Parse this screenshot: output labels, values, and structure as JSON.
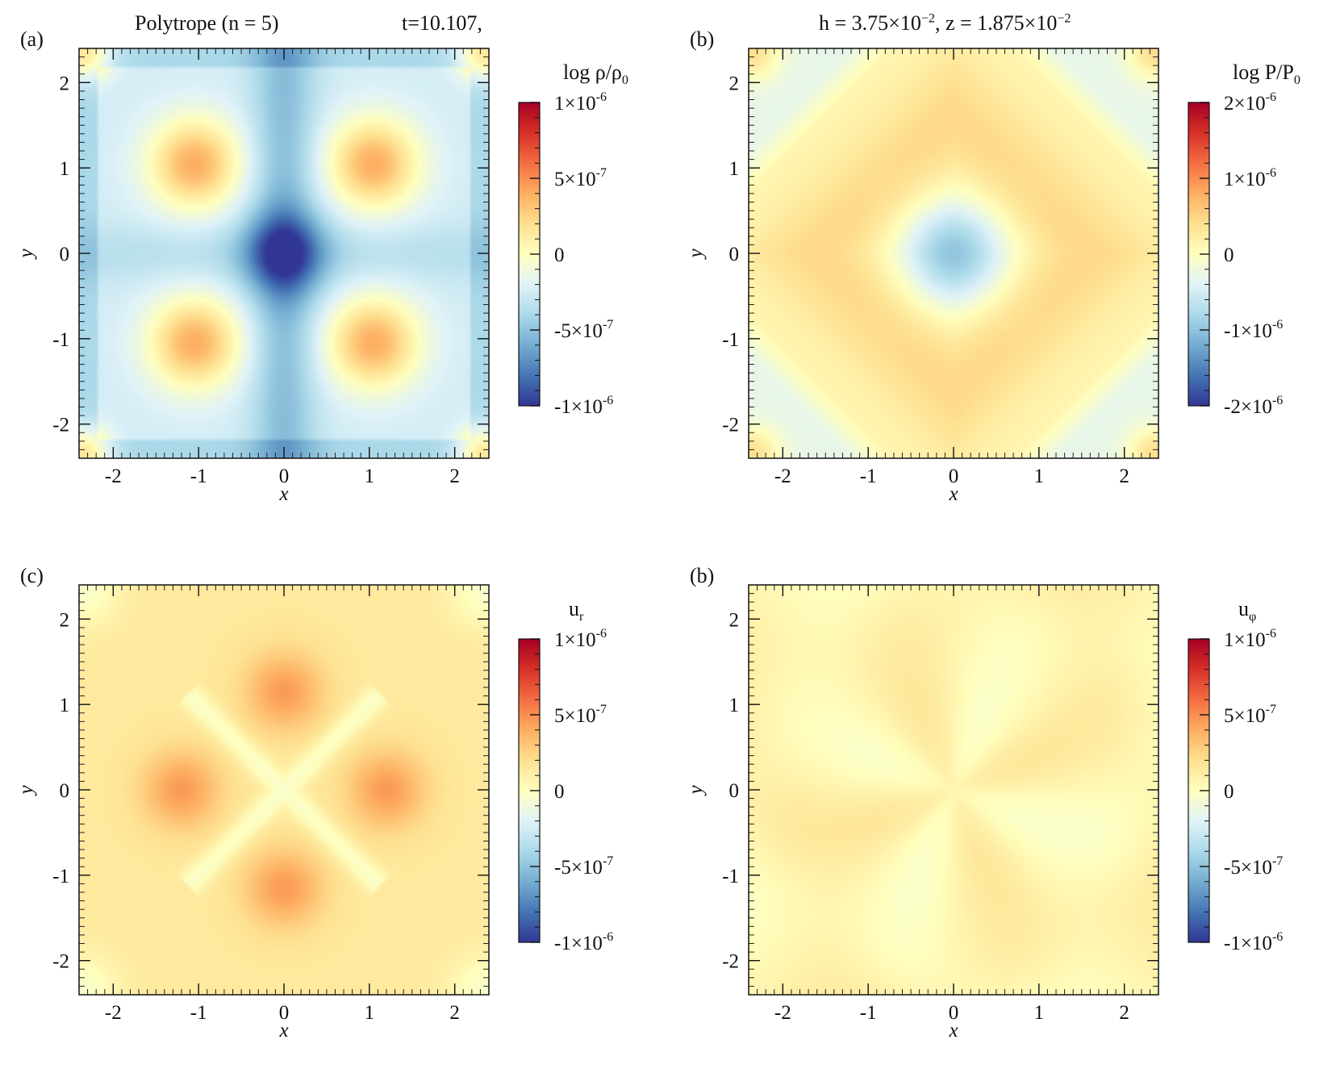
{
  "figure": {
    "title_left": "Polytrope (n = 5)",
    "title_time": "t=10.107,",
    "title_right_h": "h = 3.75×10",
    "title_right_h_exp": "−2",
    "title_right_z": ", z = 1.875×10",
    "title_right_z_exp": "−2"
  },
  "colormap": {
    "name": "RdYlBu_r",
    "stops": [
      "#313695",
      "#4575b4",
      "#74add1",
      "#abd9e9",
      "#e0f3f8",
      "#ffffbf",
      "#fee090",
      "#fdae61",
      "#f46d43",
      "#d73027",
      "#a50026"
    ]
  },
  "chart_data": [
    {
      "type": "heatmap",
      "panel_label": "(a)",
      "colorbar_label": "log ρ/ρ",
      "colorbar_label_sub": "0",
      "field": "log_rho",
      "xlabel": "x",
      "ylabel": "y",
      "xlim": [
        -2.4,
        2.4
      ],
      "ylim": [
        -2.4,
        2.4
      ],
      "xticks": [
        -2,
        -1,
        0,
        1,
        2
      ],
      "yticks": [
        -2,
        -1,
        0,
        1,
        2
      ],
      "xtick_labels": [
        "-2",
        "-1",
        "0",
        "1",
        "2"
      ],
      "ytick_labels": [
        "-2",
        "-1",
        "0",
        "1",
        "2"
      ],
      "clim": [
        -1e-06,
        1e-06
      ],
      "cticks": [
        1e-06,
        5e-07,
        0,
        -5e-07,
        -1e-06
      ],
      "ctick_labels": [
        "1×10",
        "5×10",
        "0",
        "-5×10",
        "-1×10"
      ],
      "ctick_exps": [
        "-6",
        "-7",
        "",
        "-7",
        "-6"
      ]
    },
    {
      "type": "heatmap",
      "panel_label": "(b)",
      "colorbar_label": "log P/P",
      "colorbar_label_sub": "0",
      "field": "log_P",
      "xlabel": "x",
      "ylabel": "y",
      "xlim": [
        -2.4,
        2.4
      ],
      "ylim": [
        -2.4,
        2.4
      ],
      "xticks": [
        -2,
        -1,
        0,
        1,
        2
      ],
      "yticks": [
        -2,
        -1,
        0,
        1,
        2
      ],
      "xtick_labels": [
        "-2",
        "-1",
        "0",
        "1",
        "2"
      ],
      "ytick_labels": [
        "-2",
        "-1",
        "0",
        "1",
        "2"
      ],
      "clim": [
        -2e-06,
        2e-06
      ],
      "cticks": [
        2e-06,
        1e-06,
        0,
        -1e-06,
        -2e-06
      ],
      "ctick_labels": [
        "2×10",
        "1×10",
        "0",
        "-1×10",
        "-2×10"
      ],
      "ctick_exps": [
        "-6",
        "-6",
        "",
        "-6",
        "-6"
      ]
    },
    {
      "type": "heatmap",
      "panel_label": "(c)",
      "colorbar_label": "u",
      "colorbar_label_sub": "r",
      "field": "u_r",
      "xlabel": "x",
      "ylabel": "y",
      "xlim": [
        -2.4,
        2.4
      ],
      "ylim": [
        -2.4,
        2.4
      ],
      "xticks": [
        -2,
        -1,
        0,
        1,
        2
      ],
      "yticks": [
        -2,
        -1,
        0,
        1,
        2
      ],
      "xtick_labels": [
        "-2",
        "-1",
        "0",
        "1",
        "2"
      ],
      "ytick_labels": [
        "-2",
        "-1",
        "0",
        "1",
        "2"
      ],
      "clim": [
        -1e-06,
        1e-06
      ],
      "cticks": [
        1e-06,
        5e-07,
        0,
        -5e-07,
        -1e-06
      ],
      "ctick_labels": [
        "1×10",
        "5×10",
        "0",
        "-5×10",
        "-1×10"
      ],
      "ctick_exps": [
        "-6",
        "-7",
        "",
        "-7",
        "-6"
      ]
    },
    {
      "type": "heatmap",
      "panel_label": "(b)",
      "colorbar_label": "u",
      "colorbar_label_sub": "φ",
      "field": "u_phi",
      "xlabel": "x",
      "ylabel": "y",
      "xlim": [
        -2.4,
        2.4
      ],
      "ylim": [
        -2.4,
        2.4
      ],
      "xticks": [
        -2,
        -1,
        0,
        1,
        2
      ],
      "yticks": [
        -2,
        -1,
        0,
        1,
        2
      ],
      "xtick_labels": [
        "-2",
        "-1",
        "0",
        "1",
        "2"
      ],
      "ytick_labels": [
        "-2",
        "-1",
        "0",
        "1",
        "2"
      ],
      "clim": [
        -1e-06,
        1e-06
      ],
      "cticks": [
        1e-06,
        5e-07,
        0,
        -5e-07,
        -1e-06
      ],
      "ctick_labels": [
        "1×10",
        "5×10",
        "0",
        "-5×10",
        "-1×10"
      ],
      "ctick_exps": [
        "-6",
        "-7",
        "",
        "-7",
        "-6"
      ]
    }
  ]
}
